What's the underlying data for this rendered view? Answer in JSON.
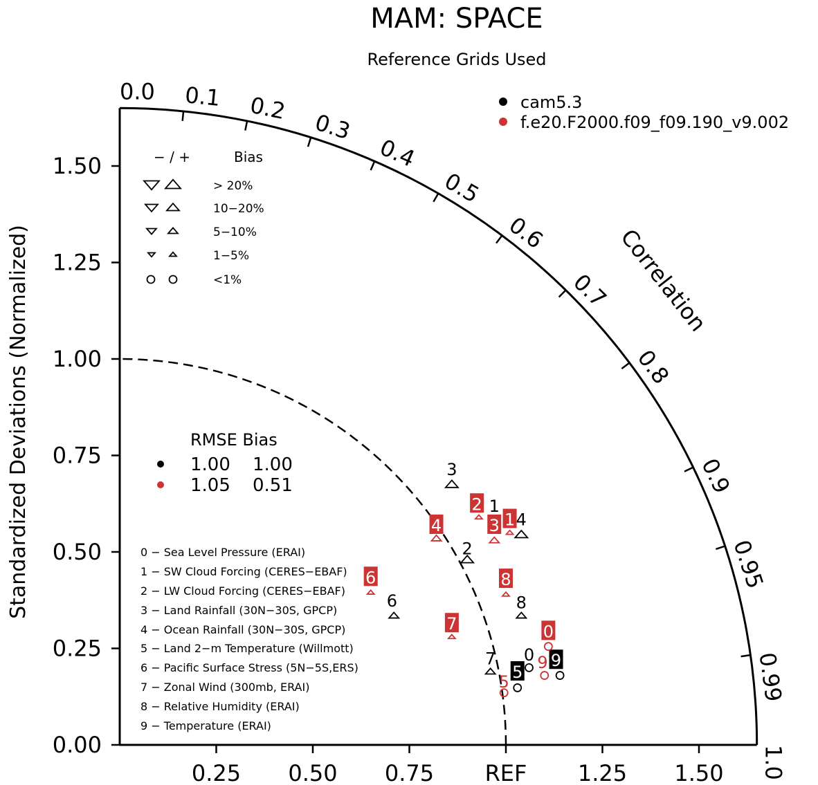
{
  "chart_data": {
    "type": "scatter",
    "subtype": "taylor-diagram",
    "title": "MAM: SPACE",
    "subtitle": "Reference Grids Used",
    "ylabel": "Standardized Deviations (Normalized)",
    "angular_label": "Correlation",
    "x_ref_label": "REF",
    "x_ticks": [
      "0.25",
      "0.50",
      "0.75",
      "REF",
      "1.25",
      "1.50"
    ],
    "x_tick_values": [
      0.25,
      0.5,
      0.75,
      1.0,
      1.25,
      1.5
    ],
    "y_ticks": [
      "0.00",
      "0.25",
      "0.50",
      "0.75",
      "1.00",
      "1.25",
      "1.50"
    ],
    "y_tick_values": [
      0,
      0.25,
      0.5,
      0.75,
      1.0,
      1.25,
      1.5
    ],
    "correlation_ticks": [
      "0.0",
      "0.1",
      "0.2",
      "0.3",
      "0.4",
      "0.5",
      "0.6",
      "0.7",
      "0.8",
      "0.9",
      "0.95",
      "0.99",
      "1.0"
    ],
    "correlation_values": [
      0,
      0.1,
      0.2,
      0.3,
      0.4,
      0.5,
      0.6,
      0.7,
      0.8,
      0.9,
      0.95,
      0.99,
      1.0
    ],
    "outer_radius": 1.65,
    "ref_circle_radius": 1.0,
    "colors": {
      "cam": "#000000",
      "f20": "#cc3333"
    },
    "series": [
      {
        "name": "cam5.3",
        "color": "#000000",
        "points": [
          {
            "id": "0",
            "x": 1.06,
            "y": 0.2,
            "marker": "circle",
            "label": "0",
            "lx": 1.06,
            "ly": 0.235,
            "boxed": false
          },
          {
            "id": "1",
            "x": 0.97,
            "y": 0.6,
            "marker": "none",
            "label": "1",
            "lx": 0.97,
            "ly": 0.62,
            "boxed": false
          },
          {
            "id": "2",
            "x": 0.9,
            "y": 0.48,
            "marker": "triangle-up-large",
            "label": "2",
            "lx": 0.9,
            "ly": 0.51,
            "boxed": false
          },
          {
            "id": "3",
            "x": 0.86,
            "y": 0.675,
            "marker": "triangle-up-large",
            "label": "3",
            "lx": 0.86,
            "ly": 0.715,
            "boxed": false
          },
          {
            "id": "4",
            "x": 1.04,
            "y": 0.545,
            "marker": "triangle-up-large",
            "label": "4",
            "lx": 1.04,
            "ly": 0.585,
            "boxed": false
          },
          {
            "id": "5",
            "x": 1.03,
            "y": 0.148,
            "marker": "circle",
            "label": "5",
            "lx": 1.03,
            "ly": 0.19,
            "boxed": true
          },
          {
            "id": "6",
            "x": 0.71,
            "y": 0.335,
            "marker": "triangle-up-medium",
            "label": "6",
            "lx": 0.705,
            "ly": 0.375,
            "boxed": false
          },
          {
            "id": "7",
            "x": 0.96,
            "y": 0.19,
            "marker": "triangle-up-medium",
            "label": "7",
            "lx": 0.96,
            "ly": 0.225,
            "boxed": false
          },
          {
            "id": "8",
            "x": 1.04,
            "y": 0.335,
            "marker": "triangle-up-medium",
            "label": "8",
            "lx": 1.04,
            "ly": 0.37,
            "boxed": false
          },
          {
            "id": "9",
            "x": 1.14,
            "y": 0.18,
            "marker": "circle",
            "label": "9",
            "lx": 1.13,
            "ly": 0.22,
            "boxed": true
          }
        ]
      },
      {
        "name": "f.e20.F2000.f09_f09.190_v9.002",
        "color": "#cc3333",
        "points": [
          {
            "id": "0",
            "x": 1.11,
            "y": 0.255,
            "marker": "circle",
            "label": "0",
            "lx": 1.11,
            "ly": 0.295,
            "boxed": true
          },
          {
            "id": "1",
            "x": 1.01,
            "y": 0.55,
            "marker": "triangle-up-small",
            "label": "1",
            "lx": 1.01,
            "ly": 0.585,
            "boxed": true
          },
          {
            "id": "2",
            "x": 0.93,
            "y": 0.59,
            "marker": "triangle-up-small",
            "label": "2",
            "lx": 0.925,
            "ly": 0.625,
            "boxed": true
          },
          {
            "id": "3",
            "x": 0.97,
            "y": 0.53,
            "marker": "triangle-up-medium",
            "label": "3",
            "lx": 0.97,
            "ly": 0.57,
            "boxed": true
          },
          {
            "id": "4",
            "x": 0.82,
            "y": 0.535,
            "marker": "triangle-up-medium",
            "label": "4",
            "lx": 0.82,
            "ly": 0.57,
            "boxed": true
          },
          {
            "id": "5",
            "x": 0.995,
            "y": 0.135,
            "marker": "circle",
            "label": "5",
            "lx": 0.995,
            "ly": 0.165,
            "boxed": false
          },
          {
            "id": "6",
            "x": 0.65,
            "y": 0.395,
            "marker": "triangle-up-small",
            "label": "6",
            "lx": 0.65,
            "ly": 0.435,
            "boxed": true
          },
          {
            "id": "7",
            "x": 0.86,
            "y": 0.28,
            "marker": "triangle-up-small",
            "label": "7",
            "lx": 0.86,
            "ly": 0.315,
            "boxed": true
          },
          {
            "id": "8",
            "x": 1.0,
            "y": 0.39,
            "marker": "triangle-up-small",
            "label": "8",
            "lx": 1.0,
            "ly": 0.43,
            "boxed": true
          },
          {
            "id": "9",
            "x": 1.1,
            "y": 0.18,
            "marker": "circle",
            "label": "9",
            "lx": 1.095,
            "ly": 0.215,
            "boxed": false
          }
        ]
      }
    ]
  },
  "series_legend": [
    {
      "label": "cam5.3",
      "color": "#000000"
    },
    {
      "label": "f.e20.F2000.f09_f09.190_v9.002",
      "color": "#cc3333"
    }
  ],
  "bias_legend": {
    "header_signs": "− / +",
    "header_bias": "Bias",
    "rows": [
      "> 20%",
      "10−20%",
      "5−10%",
      "1−5%",
      "<1%"
    ]
  },
  "rmse_legend": {
    "header": "RMSE Bias",
    "rows": [
      {
        "color": "#000000",
        "rmse": "1.00",
        "bias": "1.00"
      },
      {
        "color": "#cc3333",
        "rmse": "1.05",
        "bias": "0.51"
      }
    ]
  },
  "variables": [
    "0 − Sea Level Pressure (ERAI)",
    "1 − SW Cloud Forcing (CERES−EBAF)",
    "2 − LW Cloud Forcing (CERES−EBAF)",
    "3 − Land Rainfall (30N−30S, GPCP)",
    "4 − Ocean Rainfall (30N−30S, GPCP)",
    "5 − Land 2−m Temperature (Willmott)",
    "6 − Pacific Surface Stress (5N−5S,ERS)",
    "7 − Zonal Wind (300mb, ERAI)",
    "8 − Relative Humidity (ERAI)",
    "9 − Temperature (ERAI)"
  ]
}
